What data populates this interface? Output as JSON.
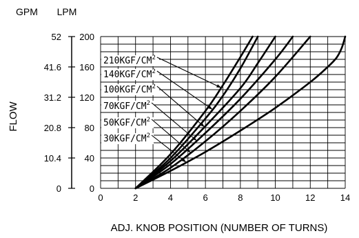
{
  "chart_data": {
    "type": "line",
    "title": "",
    "xlabel": "ADJ. KNOB POSITION (NUMBER OF TURNS)",
    "ylabel": "FLOW",
    "y_units": [
      "GPM",
      "LPM"
    ],
    "xlim": [
      0,
      14
    ],
    "ylim": [
      0,
      200
    ],
    "x_ticks": [
      "0",
      "2",
      "4",
      "6",
      "8",
      "10",
      "12",
      "14"
    ],
    "y_ticks_lpm": [
      "0",
      "40",
      "80",
      "120",
      "160",
      "200"
    ],
    "y_ticks_gpm": [
      "0",
      "10.4",
      "20.8",
      "31.2",
      "41.6",
      "52"
    ],
    "grid": true,
    "series": [
      {
        "name": "30KGF/CM²",
        "x": [
          2.0,
          4.0,
          6.0,
          8.0,
          10.0,
          12.0,
          13.0,
          13.5,
          13.8,
          14.0
        ],
        "y": [
          0,
          23,
          48,
          76,
          106,
          140,
          160,
          172,
          185,
          200
        ]
      },
      {
        "name": "50KGF/CM²",
        "x": [
          2.0,
          4.0,
          6.0,
          8.0,
          10.0,
          12.0
        ],
        "y": [
          0,
          27,
          62,
          102,
          147,
          200
        ]
      },
      {
        "name": "70KGF/CM²",
        "x": [
          2.0,
          4.0,
          6.0,
          8.0,
          10.0,
          11.0
        ],
        "y": [
          0,
          32,
          73,
          118,
          170,
          200
        ]
      },
      {
        "name": "100KGF/CM²",
        "x": [
          2.0,
          4.0,
          6.0,
          8.0,
          9.0,
          10.0
        ],
        "y": [
          0,
          36,
          82,
          132,
          165,
          200
        ]
      },
      {
        "name": "140KGF/CM²",
        "x": [
          2.0,
          4.0,
          6.0,
          7.0,
          8.0,
          9.0
        ],
        "y": [
          0,
          40,
          92,
          122,
          158,
          200
        ]
      },
      {
        "name": "210KGF/CM²",
        "x": [
          2.0,
          4.0,
          6.0,
          7.0,
          8.0,
          8.7
        ],
        "y": [
          0,
          45,
          102,
          136,
          173,
          200
        ]
      }
    ],
    "series_labels": [
      "210KGF/CM",
      "140KGF/CM",
      "100KGF/CM",
      "70KGF/CM",
      "50KGF/CM",
      "30KGF/CM"
    ],
    "superscript": "2"
  }
}
